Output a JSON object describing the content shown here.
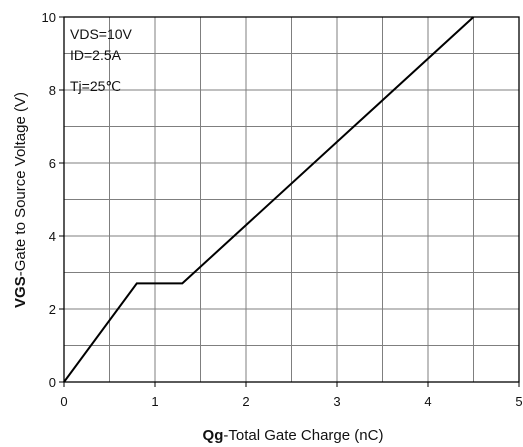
{
  "chart_data": {
    "type": "line",
    "title": "",
    "xlabel_bold": "Qg",
    "xlabel_rest": "-Total Gate Charge (nC)",
    "ylabel_bold": "VGS",
    "ylabel_rest": "-Gate to Source Voltage (V)",
    "xlim": [
      0,
      5
    ],
    "ylim": [
      0,
      10
    ],
    "x_ticks": [
      "0",
      "1",
      "2",
      "3",
      "4",
      "5"
    ],
    "y_ticks": [
      "0",
      "2",
      "4",
      "6",
      "8",
      "10"
    ],
    "grid": true,
    "annotations": [
      "VDS=10V",
      "ID=2.5A",
      "Tj=25℃"
    ],
    "series": [
      {
        "x": [
          0,
          0.8,
          1.3,
          4.5
        ],
        "y": [
          0,
          2.7,
          2.7,
          10
        ]
      }
    ]
  },
  "colors": {
    "grid": "#7f7f7f",
    "axis": "#000000",
    "line": "#000000"
  }
}
